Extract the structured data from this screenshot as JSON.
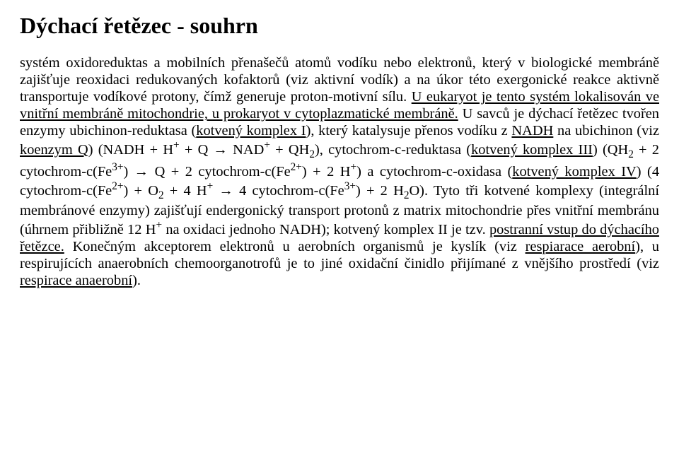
{
  "title": "Dýchací řetězec - souhrn",
  "b1": "systém oxidoreduktas a mobilních přenašečů atomů vodíku nebo elektronů, který v biologické membráně zajišťuje reoxidaci redukovaných kofaktorů (viz aktivní vodík) a na úkor této exergonické reakce aktivně transportuje vodíkové protony, čímž generuje proton-motivní sílu. ",
  "b2": "U eukaryot je tento systém lokalisován ve vnitřní membráně mitochondrie, u prokaryot v cytoplazmatické membráně.",
  "b3": " U savců je dýchací řetězec tvořen enzymy ubichinon-reduktasa (",
  "b4": "kotvený komplex I",
  "b5": "), který katalysuje přenos vodíku z ",
  "b6": "NADH",
  "b7": " na ubichinon (viz ",
  "b8": "koenzym Q",
  "b9": ") (NADH + H",
  "b10": " + Q → NAD",
  "b11": " + QH",
  "b12": "), cytochrom-c-reduktasa (",
  "b13": "kotvený komplex III",
  "b14": ") (QH",
  "b15": " + 2 cytochrom-c(Fe",
  "b16_3plus": "3+",
  "b17": ") → Q + 2 cytochrom-c(Fe",
  "b18_2plus": "2+",
  "b19": ") + 2 H",
  "b20": ") a cytochrom-c-oxidasa (",
  "b21": "kotvený komplex IV",
  "b22": ") (4 cytochrom-c(Fe",
  "b23": ") + O",
  "b24": " + 4 H",
  "b25": " → 4 cytochrom-c(Fe",
  "b26": ") + 2 H",
  "b27": "O). Tyto tři kotvené komplexy (integrální membránové enzymy) zajišťují endergonický transport protonů z matrix mitochondrie přes vnitřní membránu (úhrnem přibližně 12 H",
  "b28": " na oxidaci jednoho NADH); kotvený komplex II je tzv. ",
  "b29": "postranní vstup do dýchacího řetězce.",
  "b30": " Konečným akceptorem elektronů u aerobních organismů je kyslík (viz ",
  "b31": "respiarace aerobní",
  "b32": "), u respirujících anaerobních chemoorganotrofů je to jiné oxidační činidlo přijímané z vnějšího prostředí (viz ",
  "b33": "respirace anaerobní",
  "b34": ").",
  "plus": "+",
  "two": "2"
}
